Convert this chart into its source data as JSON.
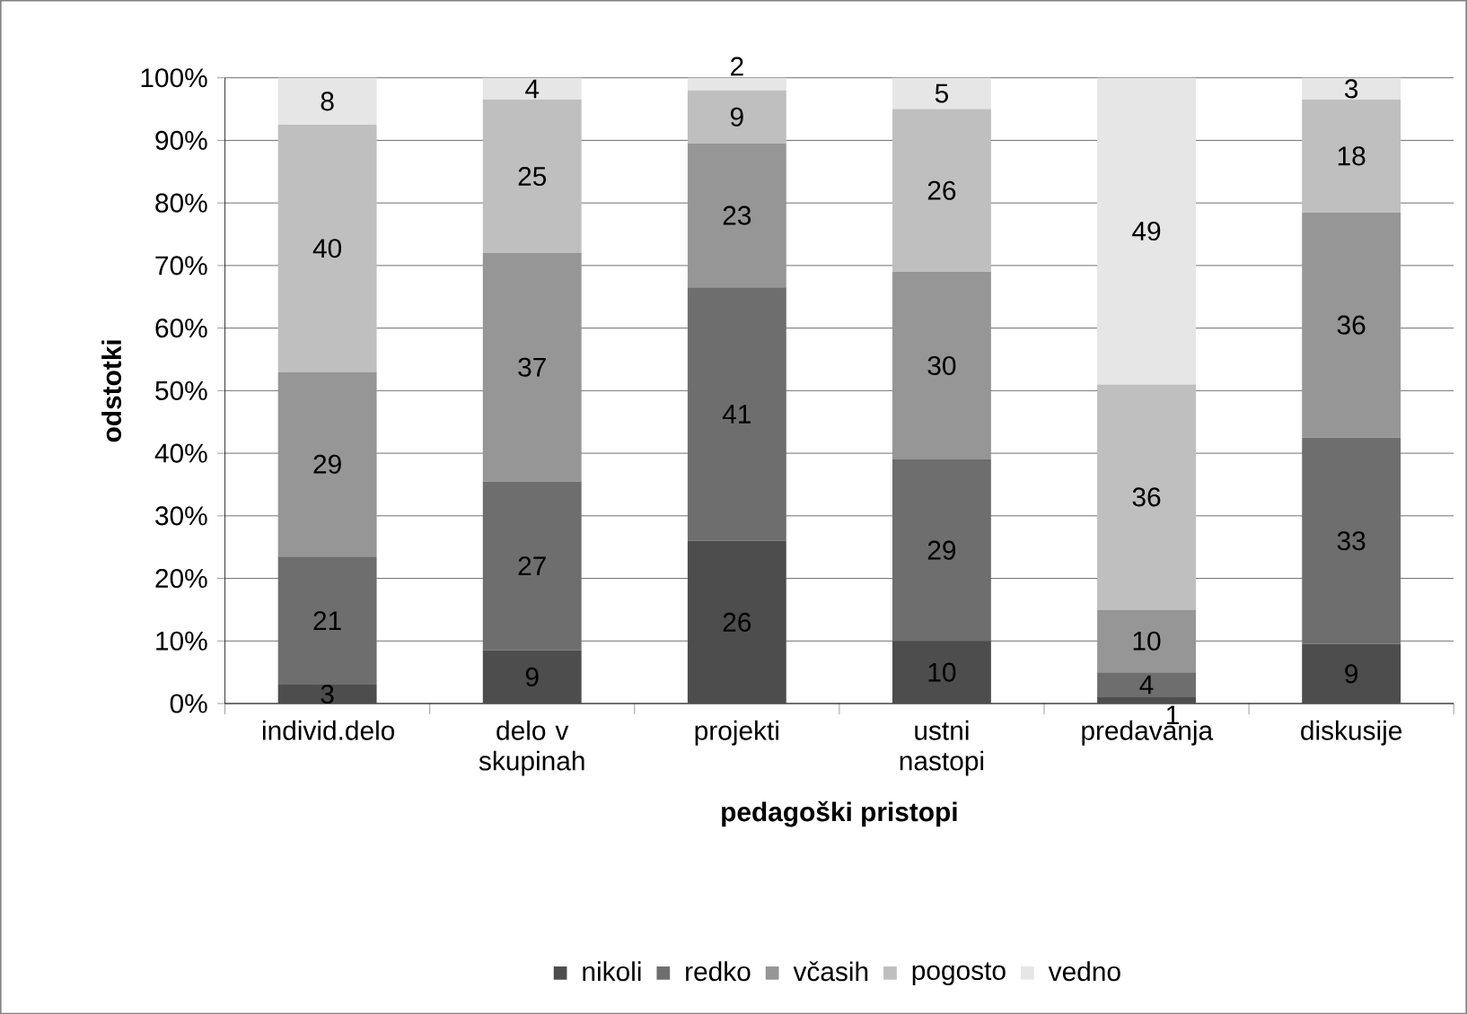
{
  "chart_data": {
    "type": "bar",
    "stacked": true,
    "xlabel": "pedagoški pristopi",
    "ylabel": "odstotki",
    "categories": [
      "individ.delo",
      "delo v skupinah",
      "projekti",
      "ustni nastopi",
      "predavanja",
      "diskusije"
    ],
    "series": [
      {
        "name": "nikoli",
        "color": "#4d4d4d",
        "values": [
          3,
          8.5,
          26,
          10,
          1,
          9.5
        ],
        "value_labels": [
          "3",
          "9",
          "26",
          "10",
          "1",
          "9"
        ]
      },
      {
        "name": "redko",
        "color": "#6e6e6e",
        "values": [
          20.5,
          27,
          40.5,
          29,
          4,
          33
        ],
        "value_labels": [
          "21",
          "27",
          "41",
          "29",
          "4",
          "33"
        ]
      },
      {
        "name": "včasih",
        "color": "#969696",
        "values": [
          29.5,
          36.5,
          23,
          30,
          10,
          36
        ],
        "value_labels": [
          "29",
          "37",
          "23",
          "30",
          "10",
          "36"
        ]
      },
      {
        "name": "pogosto",
        "color": "#bfbfbf",
        "values": [
          39.5,
          24.5,
          8.5,
          26,
          36,
          18
        ],
        "value_labels": [
          "40",
          "25",
          "9",
          "26",
          "36",
          "18"
        ]
      },
      {
        "name": "vedno",
        "color": "#e6e6e6",
        "values": [
          7.5,
          3.5,
          2,
          5,
          49,
          3.5
        ],
        "value_labels": [
          "8",
          "4",
          "2",
          "5",
          "49",
          "3"
        ]
      }
    ],
    "ylim": [
      0,
      100
    ],
    "yticks": [
      {
        "value": 0,
        "label": "0%"
      },
      {
        "value": 10,
        "label": "10%"
      },
      {
        "value": 20,
        "label": "20%"
      },
      {
        "value": 30,
        "label": "30%"
      },
      {
        "value": 40,
        "label": "40%"
      },
      {
        "value": 50,
        "label": "50%"
      },
      {
        "value": 60,
        "label": "60%"
      },
      {
        "value": 70,
        "label": "70%"
      },
      {
        "value": 80,
        "label": "80%"
      },
      {
        "value": 90,
        "label": "90%"
      },
      {
        "value": 100,
        "label": "100%"
      }
    ],
    "grid": "y",
    "legend": "bottom"
  }
}
